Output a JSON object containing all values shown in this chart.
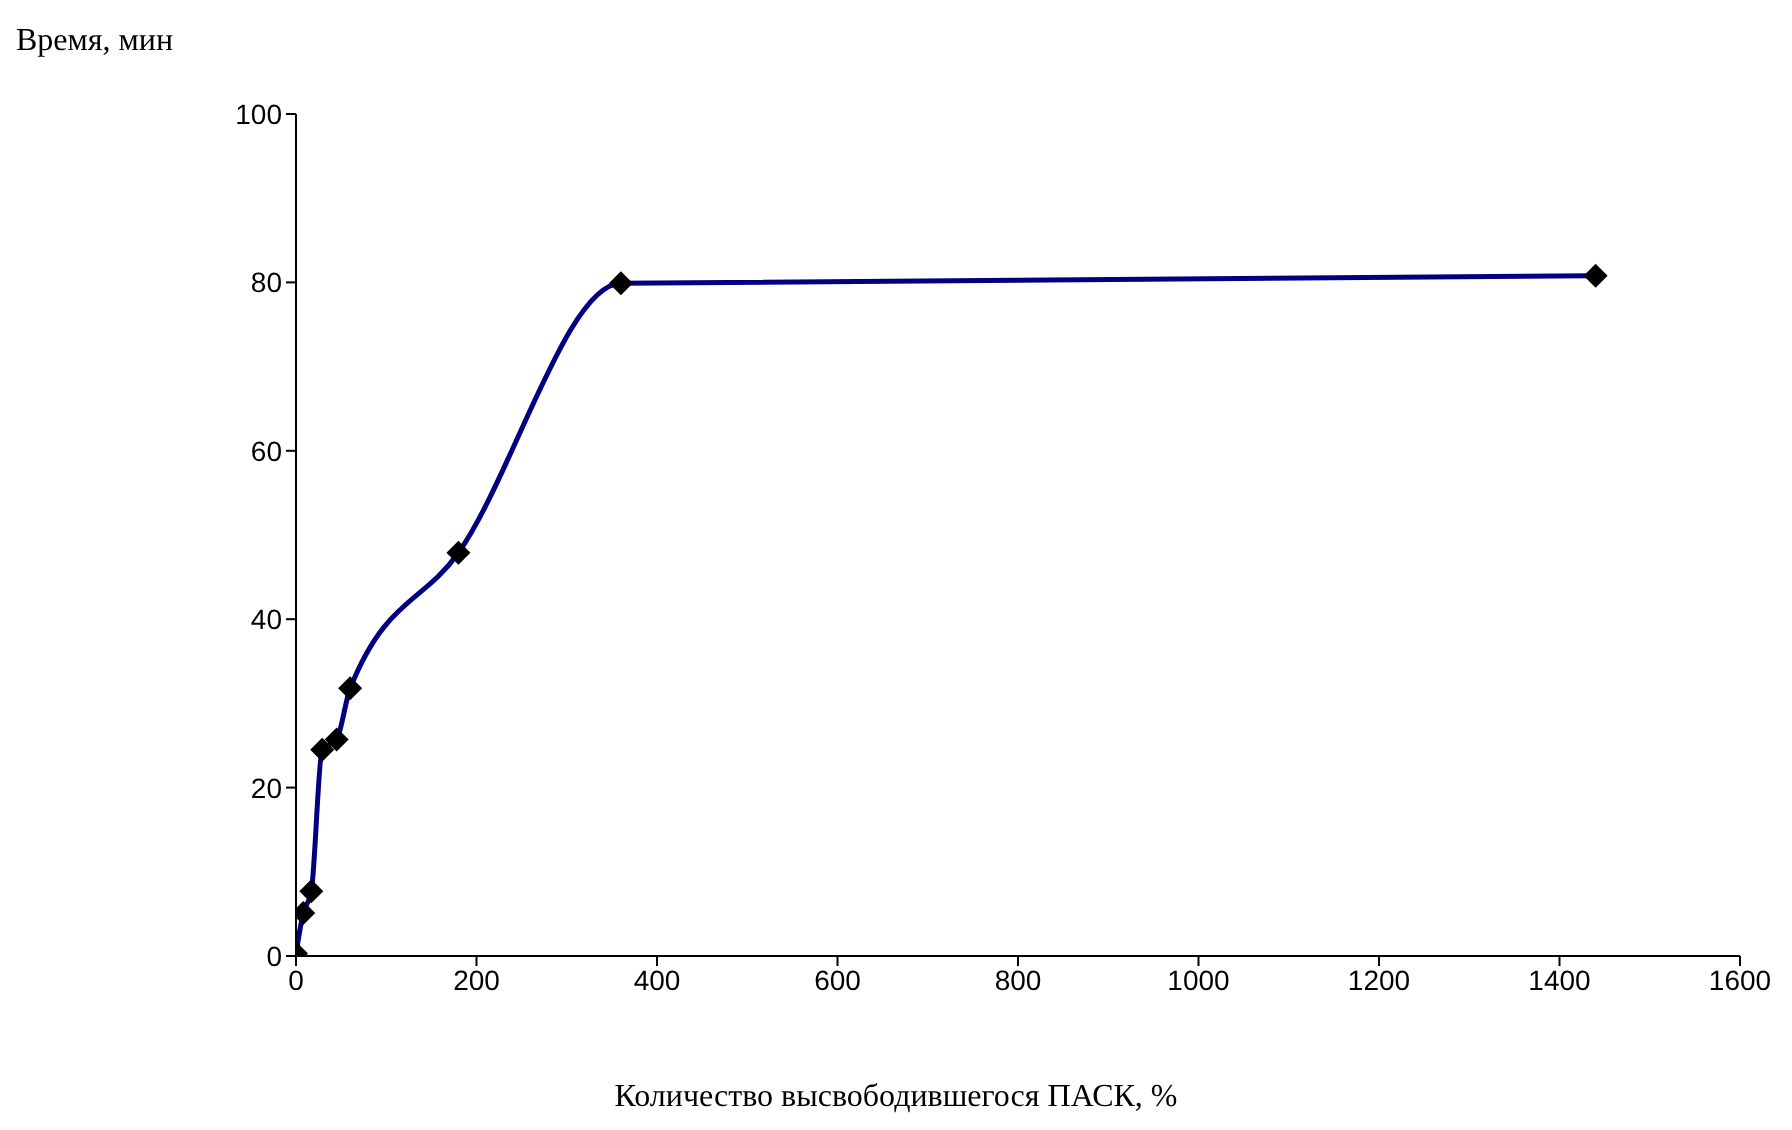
{
  "chart_data": {
    "type": "line",
    "ylabel": "Время, мин",
    "xlabel": "Количество высвободившегося ПАСК, %",
    "x": [
      0,
      8,
      17,
      29,
      45,
      60,
      180,
      360,
      1440
    ],
    "series": [
      {
        "color": "#000080",
        "values": [
          0.3,
          5.1,
          7.7,
          24.5,
          25.7,
          31.8,
          47.9,
          79.9,
          80.8
        ]
      }
    ],
    "xlim": [
      0,
      1600
    ],
    "xticks": [
      0,
      200,
      400,
      600,
      800,
      1000,
      1200,
      1400,
      1600
    ],
    "ylim": [
      0,
      100
    ],
    "yticks": [
      0,
      20,
      40,
      60,
      80,
      100
    ],
    "grid": false,
    "legend": false,
    "marker": "diamond",
    "line_style": "solid"
  }
}
